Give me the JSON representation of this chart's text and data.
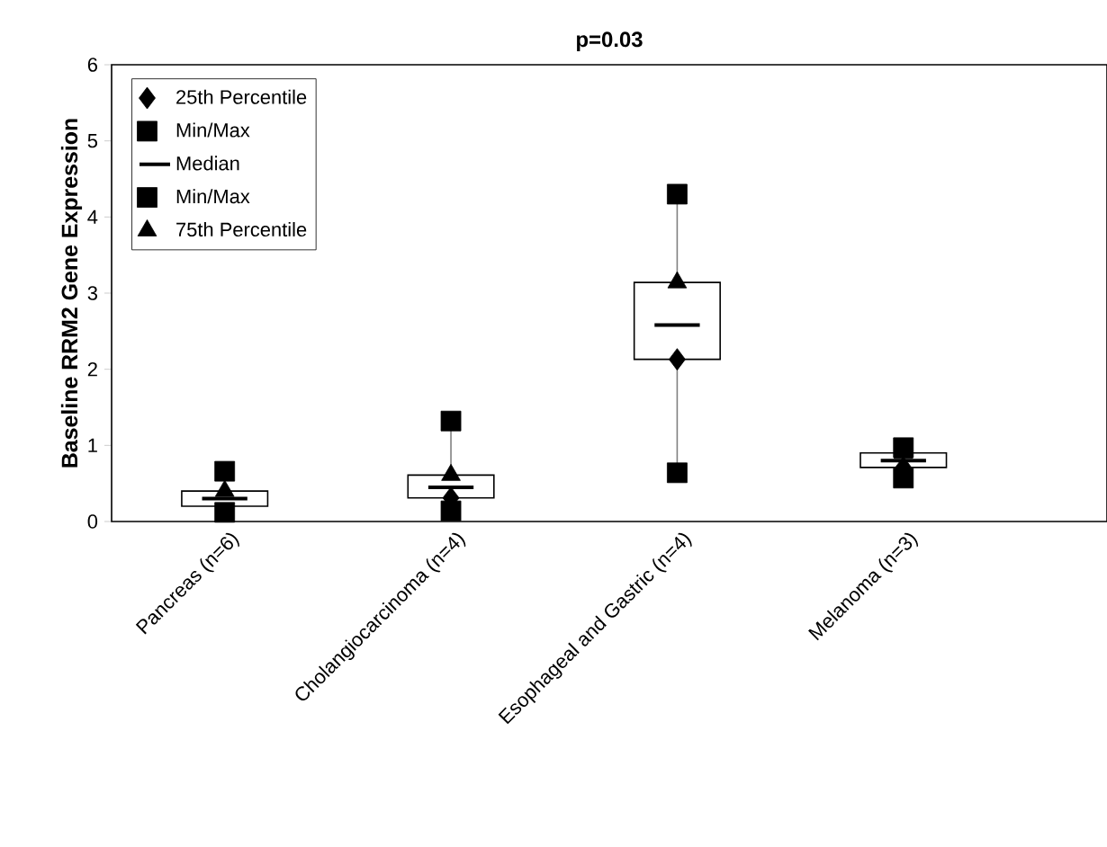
{
  "chart_data": {
    "type": "box",
    "title": "p=0.03",
    "ylabel": "Baseline RRM2 Gene Expression",
    "categories": [
      "Pancreas (n=6)",
      "Cholangiocarcinoma (n=4)",
      "Esophageal and Gastric (n=4)",
      "Melanoma (n=3)"
    ],
    "ylim": [
      0,
      6
    ],
    "yticks": [
      0,
      1,
      2,
      3,
      4,
      5,
      6
    ],
    "legend": "top left",
    "grid": false,
    "series": [
      {
        "type": "scatter",
        "name": "25th Percentile",
        "color": "#000000",
        "marker": "diamond",
        "x": [
          "Pancreas (n=6)",
          "Cholangiocarcinoma (n=4)",
          "Esophageal and Gastric (n=4)",
          "Melanoma (n=3)"
        ],
        "values": [
          null,
          0.31,
          2.13,
          0.71
        ]
      },
      {
        "type": "scatter",
        "name": "Min/Max",
        "color": "#000000",
        "marker": "square",
        "x": [
          "Pancreas (n=6)",
          "Cholangiocarcinoma (n=4)",
          "Esophageal and Gastric (n=4)",
          "Melanoma (n=3)"
        ],
        "values": [
          0.12,
          0.14,
          0.64,
          0.57
        ]
      },
      {
        "type": "box",
        "name": "Median",
        "color": "#000000",
        "boxes": [
          {
            "low": 0.12,
            "q1": 0.2,
            "median": 0.3,
            "q3": 0.4,
            "high": 0.66
          },
          {
            "low": 0.14,
            "q1": 0.31,
            "median": 0.45,
            "q3": 0.61,
            "high": 1.32
          },
          {
            "low": 0.64,
            "q1": 2.13,
            "median": 2.58,
            "q3": 3.14,
            "high": 4.3
          },
          {
            "low": 0.57,
            "q1": 0.71,
            "median": 0.8,
            "q3": 0.9,
            "high": 0.97
          }
        ]
      },
      {
        "type": "scatter",
        "name": "Min/Max",
        "color": "#000000",
        "marker": "square",
        "x": [
          "Pancreas (n=6)",
          "Cholangiocarcinoma (n=4)",
          "Esophageal and Gastric (n=4)",
          "Melanoma (n=3)"
        ],
        "values": [
          0.66,
          1.32,
          4.3,
          0.97
        ]
      },
      {
        "type": "scatter",
        "name": "75th Percentile",
        "color": "#000000",
        "marker": "triangle",
        "x": [
          "Pancreas (n=6)",
          "Cholangiocarcinoma (n=4)",
          "Esophageal and Gastric (n=4)",
          "Melanoma (n=3)"
        ],
        "values": [
          0.4,
          0.61,
          3.14,
          0.9
        ]
      }
    ]
  }
}
